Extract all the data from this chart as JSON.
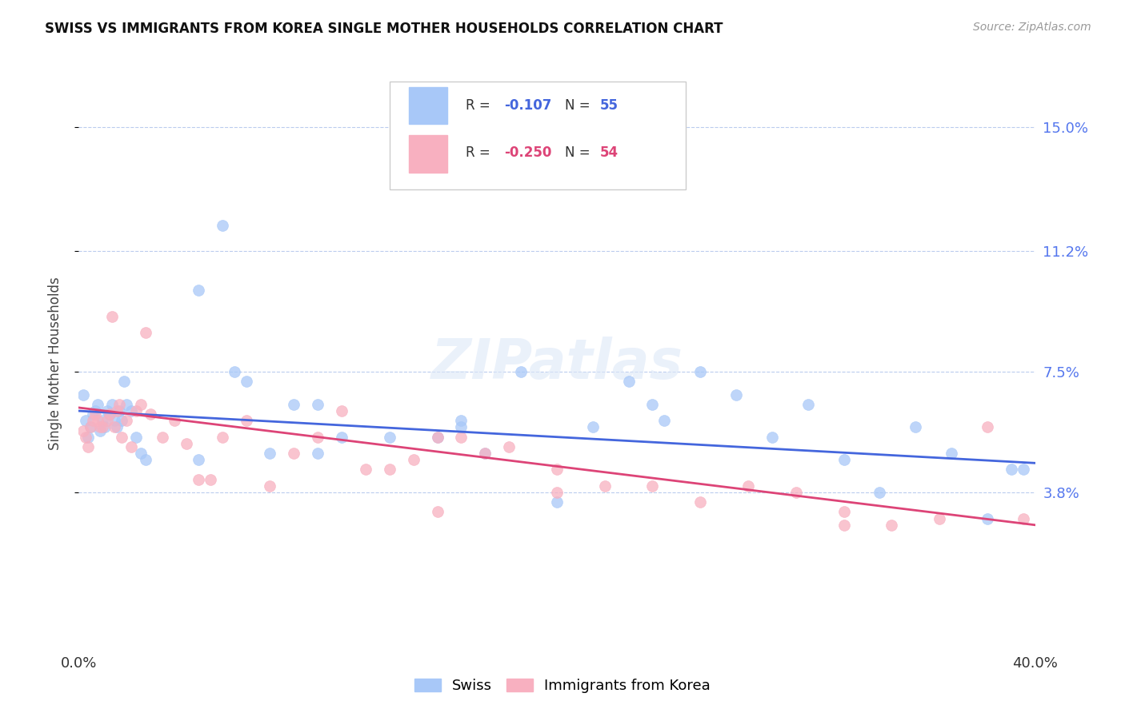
{
  "title": "SWISS VS IMMIGRANTS FROM KOREA SINGLE MOTHER HOUSEHOLDS CORRELATION CHART",
  "source": "Source: ZipAtlas.com",
  "ylabel": "Single Mother Households",
  "x_min": 0.0,
  "x_max": 0.4,
  "y_min": -0.01,
  "y_max": 0.165,
  "y_ticks": [
    0.038,
    0.075,
    0.112,
    0.15
  ],
  "y_tick_labels": [
    "3.8%",
    "7.5%",
    "11.2%",
    "15.0%"
  ],
  "x_ticks": [
    0.0,
    0.4
  ],
  "x_tick_labels": [
    "0.0%",
    "40.0%"
  ],
  "swiss_color": "#a8c8f8",
  "korean_color": "#f8b0c0",
  "trend_swiss_color": "#4466dd",
  "trend_korean_color": "#dd4477",
  "legend_R_swiss": "R = ",
  "legend_R_swiss_val": "-0.107",
  "legend_N_swiss": "N = ",
  "legend_N_swiss_val": "55",
  "legend_R_korean": "R = ",
  "legend_R_korean_val": "-0.250",
  "legend_N_korean": "N = ",
  "legend_N_korean_val": "54",
  "legend_label_swiss": "Swiss",
  "legend_label_korean": "Immigrants from Korea",
  "watermark": "ZIPatlas",
  "swiss_x": [
    0.002,
    0.003,
    0.004,
    0.005,
    0.006,
    0.007,
    0.008,
    0.009,
    0.01,
    0.011,
    0.012,
    0.013,
    0.014,
    0.015,
    0.016,
    0.017,
    0.018,
    0.019,
    0.02,
    0.022,
    0.024,
    0.026,
    0.028,
    0.05,
    0.06,
    0.065,
    0.07,
    0.08,
    0.09,
    0.1,
    0.11,
    0.13,
    0.15,
    0.16,
    0.17,
    0.185,
    0.2,
    0.215,
    0.23,
    0.245,
    0.26,
    0.275,
    0.29,
    0.305,
    0.32,
    0.335,
    0.35,
    0.365,
    0.38,
    0.39,
    0.05,
    0.1,
    0.16,
    0.24,
    0.395
  ],
  "swiss_y": [
    0.068,
    0.06,
    0.055,
    0.058,
    0.062,
    0.063,
    0.065,
    0.057,
    0.06,
    0.058,
    0.063,
    0.062,
    0.065,
    0.06,
    0.058,
    0.063,
    0.06,
    0.072,
    0.065,
    0.063,
    0.055,
    0.05,
    0.048,
    0.1,
    0.12,
    0.075,
    0.072,
    0.05,
    0.065,
    0.065,
    0.055,
    0.055,
    0.055,
    0.06,
    0.05,
    0.075,
    0.035,
    0.058,
    0.072,
    0.06,
    0.075,
    0.068,
    0.055,
    0.065,
    0.048,
    0.038,
    0.058,
    0.05,
    0.03,
    0.045,
    0.048,
    0.05,
    0.058,
    0.065,
    0.045
  ],
  "korean_x": [
    0.002,
    0.003,
    0.004,
    0.005,
    0.006,
    0.007,
    0.008,
    0.009,
    0.01,
    0.012,
    0.013,
    0.014,
    0.015,
    0.016,
    0.017,
    0.018,
    0.02,
    0.022,
    0.024,
    0.026,
    0.028,
    0.03,
    0.035,
    0.04,
    0.045,
    0.06,
    0.07,
    0.09,
    0.1,
    0.11,
    0.12,
    0.13,
    0.14,
    0.15,
    0.16,
    0.17,
    0.18,
    0.2,
    0.22,
    0.24,
    0.26,
    0.28,
    0.3,
    0.32,
    0.34,
    0.36,
    0.38,
    0.395,
    0.05,
    0.08,
    0.055,
    0.15,
    0.2,
    0.32
  ],
  "korean_y": [
    0.057,
    0.055,
    0.052,
    0.058,
    0.06,
    0.062,
    0.06,
    0.058,
    0.058,
    0.06,
    0.062,
    0.092,
    0.058,
    0.063,
    0.065,
    0.055,
    0.06,
    0.052,
    0.063,
    0.065,
    0.087,
    0.062,
    0.055,
    0.06,
    0.053,
    0.055,
    0.06,
    0.05,
    0.055,
    0.063,
    0.045,
    0.045,
    0.048,
    0.055,
    0.055,
    0.05,
    0.052,
    0.045,
    0.04,
    0.04,
    0.035,
    0.04,
    0.038,
    0.028,
    0.028,
    0.03,
    0.058,
    0.03,
    0.042,
    0.04,
    0.042,
    0.032,
    0.038,
    0.032
  ],
  "swiss_trend_x0": 0.0,
  "swiss_trend_x1": 0.4,
  "swiss_trend_y0": 0.063,
  "swiss_trend_y1": 0.047,
  "korean_trend_x0": 0.0,
  "korean_trend_x1": 0.4,
  "korean_trend_y0": 0.064,
  "korean_trend_y1": 0.028
}
